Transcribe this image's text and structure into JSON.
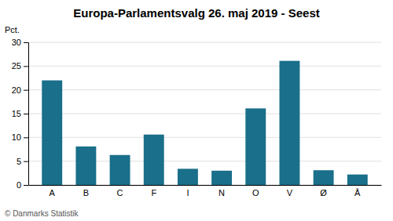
{
  "chart_data": {
    "type": "bar",
    "title": "Europa-Parlamentsvalg 26. maj 2019 - Seest",
    "ylabel": "Pct.",
    "annotations": [
      "© Danmarks Statistik"
    ],
    "categories": [
      "A",
      "B",
      "C",
      "F",
      "I",
      "N",
      "O",
      "V",
      "Ø",
      "Å"
    ],
    "values": [
      22.0,
      8.1,
      6.3,
      10.6,
      3.4,
      3.0,
      16.1,
      26.1,
      3.1,
      2.2
    ],
    "color": "#1a6f8a",
    "ylim": [
      0,
      30
    ],
    "yticks": [
      0,
      5,
      10,
      15,
      20,
      25,
      30
    ],
    "grid": true
  }
}
